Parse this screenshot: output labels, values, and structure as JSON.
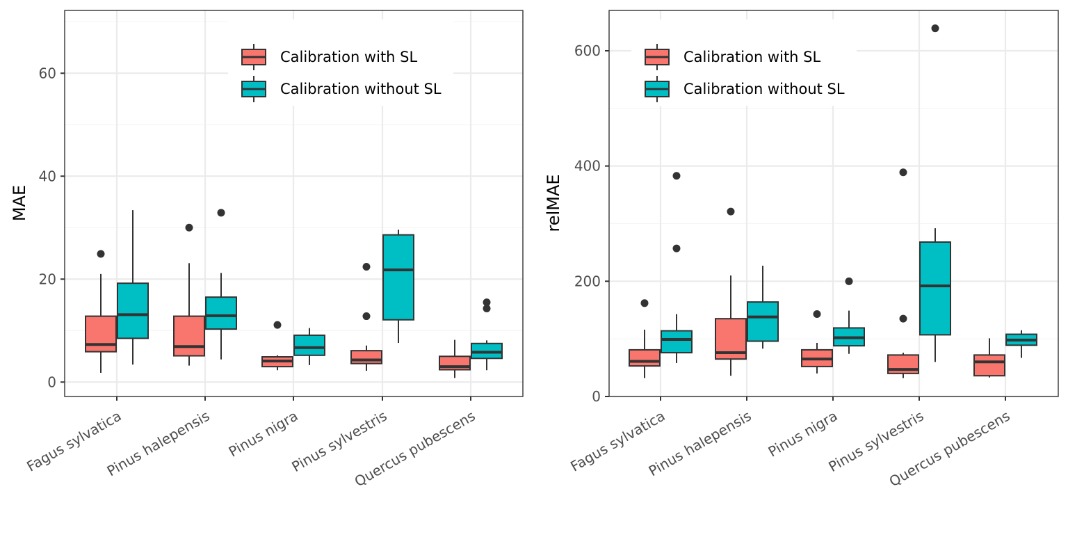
{
  "colors": {
    "with_sl": "#F8766D",
    "without_sl": "#00BFC4",
    "grid_major": "#EBEBEB",
    "grid_minor": "#F4F4F4",
    "panel_border": "#333333",
    "box_line": "#333333"
  },
  "legend": {
    "with_label": "Calibration with SL",
    "without_label": "Calibration without SL"
  },
  "chart_data": [
    {
      "type": "box",
      "ylabel": "MAE",
      "ylim": [
        -2.8,
        72.2
      ],
      "yticks": [
        0,
        20,
        40,
        60
      ],
      "y_tick_labels": [
        "0",
        "20",
        "40",
        "60"
      ],
      "legend_position": "top-right",
      "categories": [
        "Fagus sylvatica",
        "Pinus halepensis",
        "Pinus nigra",
        "Pinus sylvestris",
        "Quercus pubescens"
      ],
      "series": [
        {
          "name": "Calibration with SL",
          "boxes": [
            {
              "low": 1.8,
              "q1": 5.9,
              "median": 7.3,
              "q3": 12.8,
              "high": 21.0,
              "outliers": [
                24.9
              ]
            },
            {
              "low": 3.2,
              "q1": 5.1,
              "median": 6.9,
              "q3": 12.8,
              "high": 23.1,
              "outliers": [
                30.0
              ]
            },
            {
              "low": 2.3,
              "q1": 3.0,
              "median": 4.1,
              "q3": 4.9,
              "high": 5.2,
              "outliers": [
                11.1
              ]
            },
            {
              "low": 2.2,
              "q1": 3.6,
              "median": 4.3,
              "q3": 6.1,
              "high": 7.1,
              "outliers": [
                12.8,
                22.4
              ]
            },
            {
              "low": 0.8,
              "q1": 2.4,
              "median": 3.0,
              "q3": 5.0,
              "high": 8.2,
              "outliers": []
            }
          ]
        },
        {
          "name": "Calibration without SL",
          "boxes": [
            {
              "low": 3.4,
              "q1": 8.5,
              "median": 13.1,
              "q3": 19.2,
              "high": 33.4,
              "outliers": []
            },
            {
              "low": 4.4,
              "q1": 10.3,
              "median": 12.9,
              "q3": 16.5,
              "high": 21.2,
              "outliers": [
                32.9
              ]
            },
            {
              "low": 3.3,
              "q1": 5.2,
              "median": 6.7,
              "q3": 9.1,
              "high": 10.5,
              "outliers": []
            },
            {
              "low": 7.6,
              "q1": 12.1,
              "median": 21.8,
              "q3": 28.6,
              "high": 29.6,
              "outliers": []
            },
            {
              "low": 2.3,
              "q1": 4.6,
              "median": 5.8,
              "q3": 7.5,
              "high": 8.1,
              "outliers": [
                14.3,
                15.5
              ]
            }
          ]
        }
      ]
    },
    {
      "type": "box",
      "ylabel": "relMAE",
      "ylim": [
        0,
        670
      ],
      "yticks": [
        0,
        200,
        400,
        600
      ],
      "y_tick_labels": [
        "0",
        "200",
        "400",
        "600"
      ],
      "legend_position": "top-left",
      "categories": [
        "Fagus sylvatica",
        "Pinus halepensis",
        "Pinus nigra",
        "Pinus sylvestris",
        "Quercus pubescens"
      ],
      "series": [
        {
          "name": "Calibration with SL",
          "boxes": [
            {
              "low": 32,
              "q1": 53,
              "median": 61,
              "q3": 81,
              "high": 116,
              "outliers": [
                162
              ]
            },
            {
              "low": 36,
              "q1": 65,
              "median": 76,
              "q3": 135,
              "high": 210,
              "outliers": [
                321
              ]
            },
            {
              "low": 40,
              "q1": 52,
              "median": 65,
              "q3": 81,
              "high": 93,
              "outliers": [
                143
              ]
            },
            {
              "low": 32,
              "q1": 40,
              "median": 47,
              "q3": 72,
              "high": 76,
              "outliers": [
                135,
                389
              ]
            },
            {
              "low": 33,
              "q1": 36,
              "median": 60,
              "q3": 72,
              "high": 101,
              "outliers": []
            }
          ]
        },
        {
          "name": "Calibration without SL",
          "boxes": [
            {
              "low": 58,
              "q1": 76,
              "median": 99,
              "q3": 114,
              "high": 143,
              "outliers": [
                257,
                383
              ]
            },
            {
              "low": 83,
              "q1": 96,
              "median": 138,
              "q3": 164,
              "high": 227,
              "outliers": []
            },
            {
              "low": 74,
              "q1": 88,
              "median": 102,
              "q3": 119,
              "high": 149,
              "outliers": [
                200
              ]
            },
            {
              "low": 60,
              "q1": 107,
              "median": 192,
              "q3": 268,
              "high": 292,
              "outliers": [
                639
              ]
            },
            {
              "low": 67,
              "q1": 89,
              "median": 98,
              "q3": 108,
              "high": 115,
              "outliers": []
            }
          ]
        }
      ]
    }
  ]
}
